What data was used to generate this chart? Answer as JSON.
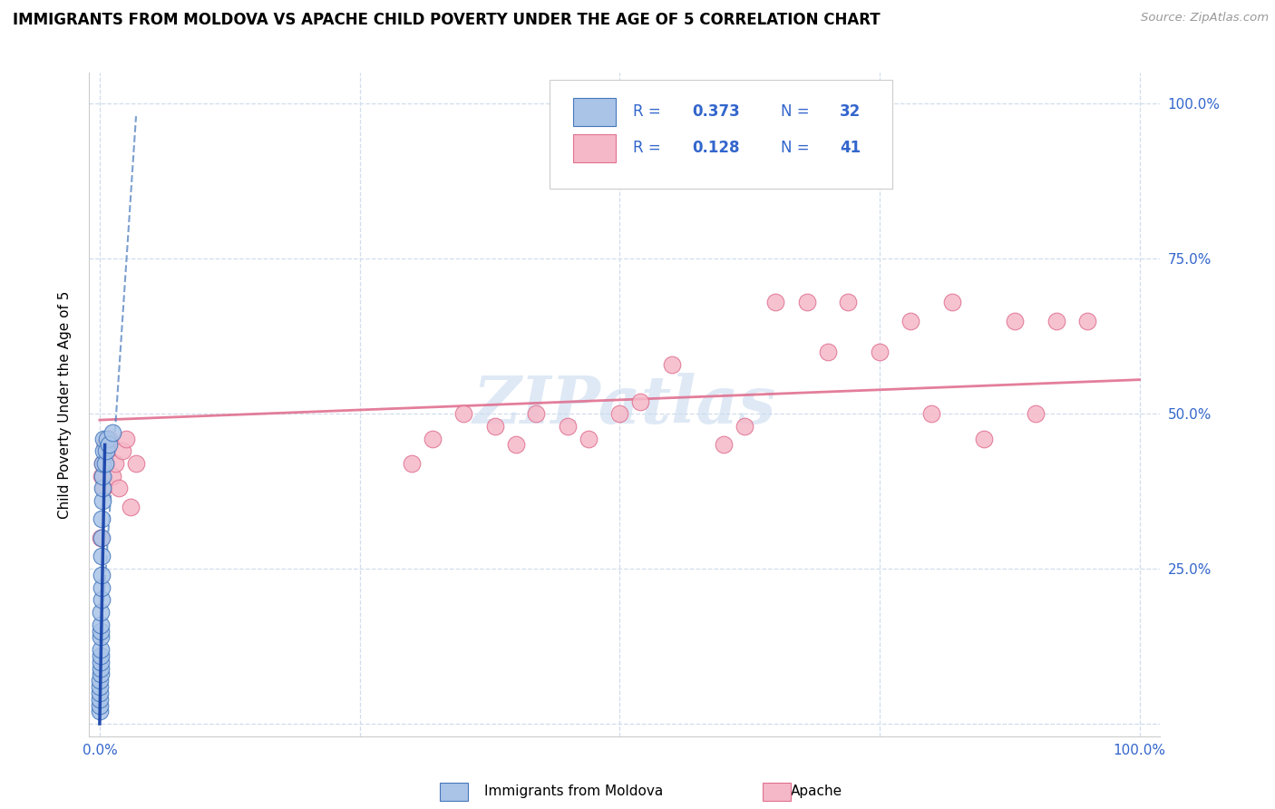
{
  "title": "IMMIGRANTS FROM MOLDOVA VS APACHE CHILD POVERTY UNDER THE AGE OF 5 CORRELATION CHART",
  "source": "Source: ZipAtlas.com",
  "ylabel": "Child Poverty Under the Age of 5",
  "blue_color": "#aac4e8",
  "blue_edge_color": "#4477bb",
  "blue_line_color": "#4477bb",
  "pink_color": "#f5b8c8",
  "pink_edge_color": "#e07090",
  "pink_line_color": "#e07090",
  "watermark": "ZIPatlas",
  "moldova_x": [
    0.0002,
    0.0003,
    0.0004,
    0.0004,
    0.0005,
    0.0005,
    0.0006,
    0.0007,
    0.0008,
    0.0009,
    0.001,
    0.001,
    0.0012,
    0.0013,
    0.0014,
    0.0015,
    0.0016,
    0.0018,
    0.002,
    0.002,
    0.0022,
    0.0024,
    0.0025,
    0.003,
    0.003,
    0.0035,
    0.004,
    0.005,
    0.006,
    0.007,
    0.009,
    0.012
  ],
  "moldova_y": [
    0.02,
    0.03,
    0.04,
    0.05,
    0.06,
    0.07,
    0.08,
    0.09,
    0.1,
    0.11,
    0.12,
    0.14,
    0.15,
    0.16,
    0.18,
    0.2,
    0.22,
    0.24,
    0.27,
    0.3,
    0.33,
    0.36,
    0.38,
    0.4,
    0.42,
    0.44,
    0.46,
    0.42,
    0.44,
    0.46,
    0.45,
    0.47
  ],
  "apache_x": [
    0.001,
    0.002,
    0.003,
    0.004,
    0.005,
    0.006,
    0.007,
    0.009,
    0.012,
    0.015,
    0.018,
    0.022,
    0.025,
    0.03,
    0.035,
    0.3,
    0.32,
    0.35,
    0.38,
    0.4,
    0.42,
    0.45,
    0.47,
    0.5,
    0.52,
    0.55,
    0.6,
    0.62,
    0.65,
    0.68,
    0.7,
    0.72,
    0.75,
    0.78,
    0.8,
    0.82,
    0.85,
    0.88,
    0.9,
    0.92,
    0.95
  ],
  "apache_y": [
    0.3,
    0.4,
    0.42,
    0.38,
    0.45,
    0.42,
    0.44,
    0.46,
    0.4,
    0.42,
    0.38,
    0.44,
    0.46,
    0.35,
    0.42,
    0.42,
    0.46,
    0.5,
    0.48,
    0.45,
    0.5,
    0.48,
    0.46,
    0.5,
    0.52,
    0.58,
    0.45,
    0.48,
    0.68,
    0.68,
    0.6,
    0.68,
    0.6,
    0.65,
    0.5,
    0.68,
    0.46,
    0.65,
    0.5,
    0.65,
    0.65
  ],
  "xticks": [
    0.0,
    0.25,
    0.5,
    0.75,
    1.0
  ],
  "yticks": [
    0.0,
    0.25,
    0.5,
    0.75,
    1.0
  ],
  "xlim": [
    -0.01,
    1.02
  ],
  "ylim": [
    -0.02,
    1.05
  ]
}
